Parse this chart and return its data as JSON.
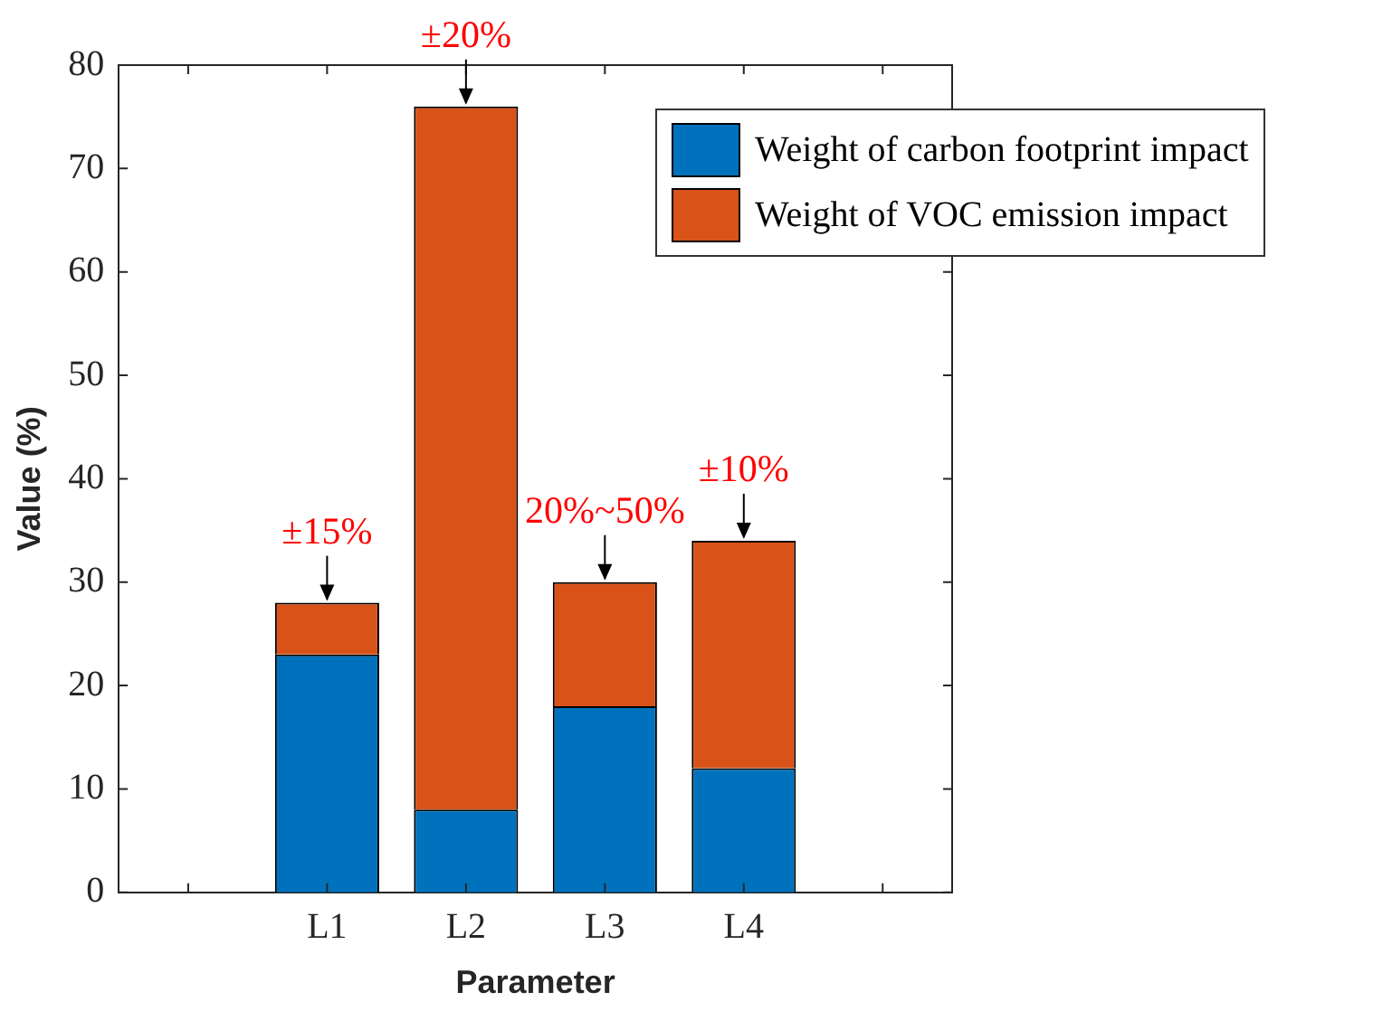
{
  "chart_data": {
    "type": "bar",
    "stacked": true,
    "xlabel": "Parameter",
    "ylabel": "Value (%)",
    "categories": [
      null,
      "L1",
      "L2",
      "L3",
      "L4",
      null
    ],
    "series": [
      {
        "name": "Weight of carbon footprint impact",
        "color": "#0072bd",
        "values": [
          null,
          23,
          8,
          18,
          12,
          null
        ]
      },
      {
        "name": "Weight of VOC emission impact",
        "color": "#d95319",
        "values": [
          null,
          5,
          68,
          12,
          22,
          null
        ]
      }
    ],
    "ylim": [
      0,
      80
    ],
    "yticks": [
      0,
      10,
      20,
      30,
      40,
      50,
      60,
      70,
      80
    ],
    "grid": false,
    "legend": "top right",
    "annotations": [
      {
        "text": "±15%",
        "x": "L1",
        "y": 28
      },
      {
        "text": "±20%",
        "x": "L2",
        "y": 76
      },
      {
        "text": "20%~50%",
        "x": "L3",
        "y": 30
      },
      {
        "text": "±10%",
        "x": "L4",
        "y": 34
      }
    ]
  }
}
